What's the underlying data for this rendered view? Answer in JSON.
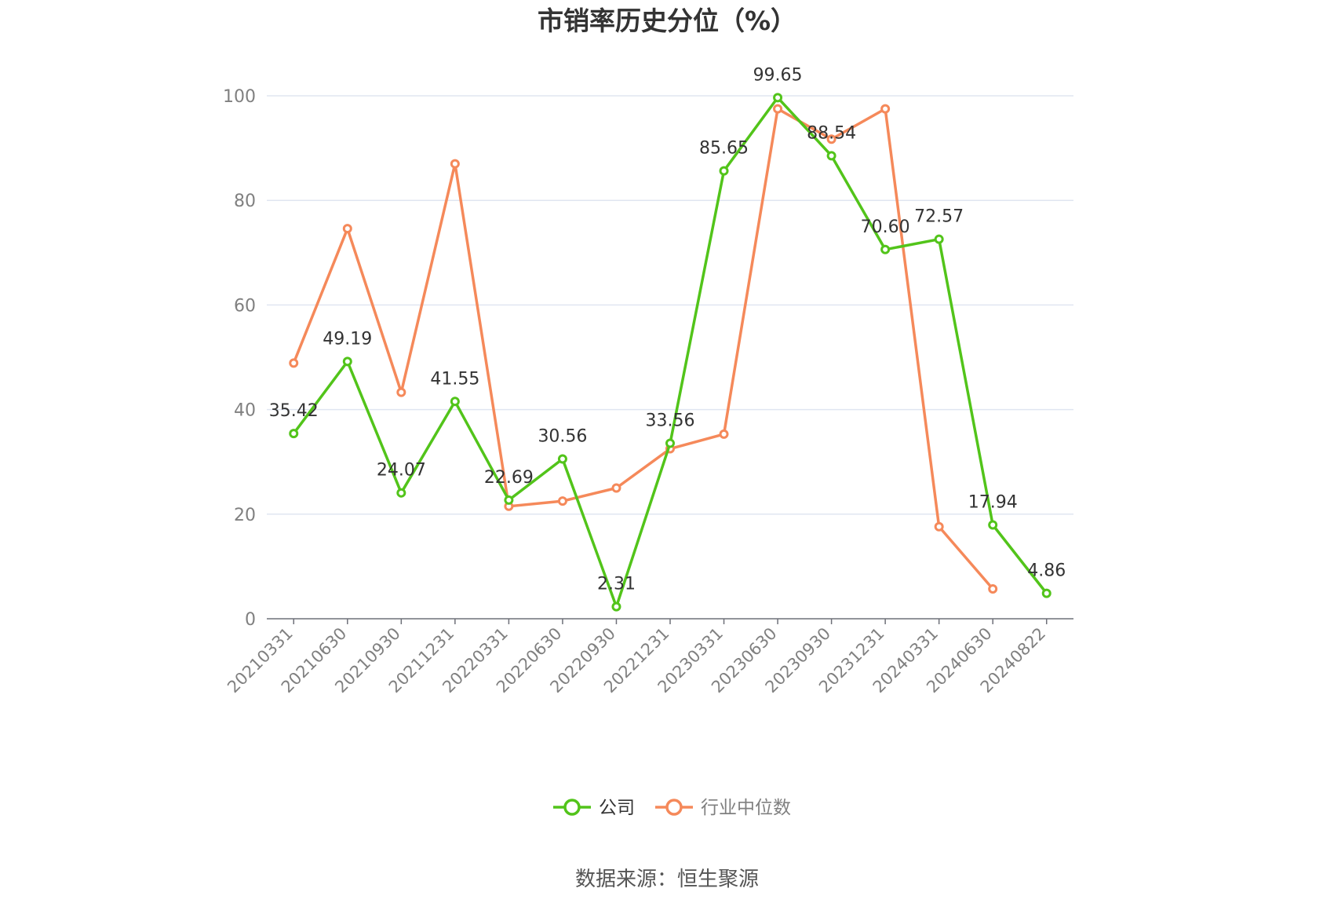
{
  "chart_data": {
    "type": "line",
    "title": "市销率历史分位（%）",
    "categories": [
      "20210331",
      "20210630",
      "20210930",
      "20211231",
      "20220331",
      "20220630",
      "20220930",
      "20221231",
      "20230331",
      "20230630",
      "20230930",
      "20231231",
      "20240331",
      "20240630",
      "20240822"
    ],
    "ylim": [
      0,
      100
    ],
    "yticks": [
      0,
      20,
      40,
      60,
      80,
      100
    ],
    "grid": true,
    "legend_position": "bottom-center",
    "series": [
      {
        "name": "公司",
        "color": "#52c41a",
        "values": [
          35.42,
          49.19,
          24.07,
          41.55,
          22.69,
          30.56,
          2.31,
          33.56,
          85.65,
          99.65,
          88.54,
          70.6,
          72.57,
          17.94,
          4.86
        ],
        "labels": [
          "35.42",
          "49.19",
          "24.07",
          "41.55",
          "22.69",
          "30.56",
          "2.31",
          "33.56",
          "85.65",
          "99.65",
          "88.54",
          "70.60",
          "72.57",
          "17.94",
          "4.86"
        ]
      },
      {
        "name": "行业中位数",
        "color": "#f5895a",
        "values": [
          48.9,
          74.6,
          43.3,
          87.0,
          21.5,
          22.5,
          25.0,
          32.5,
          35.3,
          97.5,
          91.7,
          97.5,
          17.6,
          5.7,
          null
        ]
      }
    ],
    "source": "数据来源：恒生聚源"
  }
}
